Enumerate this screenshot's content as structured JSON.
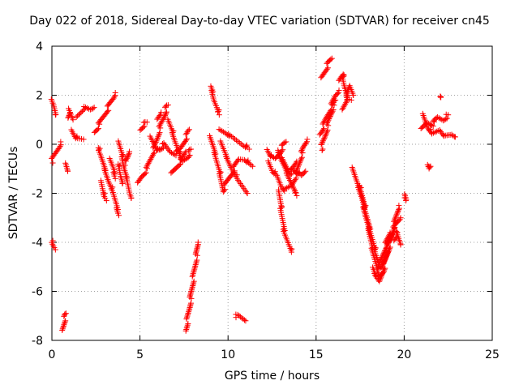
{
  "chart_data": {
    "type": "scatter",
    "title": "Day 022 of 2018, Sidereal Day-to-day VTEC variation (SDTVAR) for receiver cn45",
    "xlabel": "GPS time / hours",
    "ylabel": "SDTVAR / TECUs",
    "xlim": [
      0,
      25
    ],
    "ylim": [
      -8,
      4
    ],
    "xticks": [
      0,
      5,
      10,
      15,
      20,
      25
    ],
    "yticks": [
      -8,
      -6,
      -4,
      -2,
      0,
      2,
      4
    ],
    "grid": true,
    "marker": "+",
    "color": "#ff0000",
    "series": [
      {
        "name": "SDTVAR",
        "tracks": [
          [
            [
              0.0,
              1.8
            ],
            [
              0.1,
              1.6
            ],
            [
              0.2,
              1.2
            ]
          ],
          [
            [
              0.0,
              -0.7
            ],
            [
              0.2,
              -0.4
            ],
            [
              0.4,
              -0.1
            ],
            [
              0.5,
              0.1
            ]
          ],
          [
            [
              0.0,
              -4.0
            ],
            [
              0.2,
              -4.3
            ]
          ],
          [
            [
              0.6,
              -7.6
            ],
            [
              0.7,
              -7.2
            ],
            [
              0.8,
              -6.9
            ]
          ],
          [
            [
              0.8,
              -0.8
            ],
            [
              0.9,
              -1.1
            ]
          ],
          [
            [
              0.9,
              1.1
            ],
            [
              1.0,
              1.4
            ],
            [
              1.2,
              1.0
            ]
          ],
          [
            [
              1.1,
              0.6
            ],
            [
              1.3,
              0.3
            ],
            [
              1.5,
              0.2
            ],
            [
              1.8,
              0.2
            ]
          ],
          [
            [
              1.4,
              1.1
            ],
            [
              1.8,
              1.5
            ],
            [
              2.2,
              1.4
            ],
            [
              2.4,
              1.5
            ]
          ],
          [
            [
              2.4,
              0.5
            ],
            [
              2.6,
              0.7
            ],
            [
              2.9,
              1.1
            ],
            [
              3.2,
              1.5
            ],
            [
              3.5,
              1.9
            ],
            [
              3.6,
              2.1
            ]
          ],
          [
            [
              2.6,
              -0.1
            ],
            [
              2.8,
              -0.5
            ],
            [
              3.0,
              -1.0
            ],
            [
              3.2,
              -1.5
            ],
            [
              3.5,
              -2.0
            ],
            [
              3.7,
              -2.6
            ],
            [
              3.8,
              -2.9
            ]
          ],
          [
            [
              2.8,
              -1.5
            ],
            [
              2.9,
              -2.0
            ],
            [
              3.1,
              -2.3
            ]
          ],
          [
            [
              3.3,
              -0.6
            ],
            [
              3.5,
              -1.0
            ],
            [
              3.6,
              -1.4
            ]
          ],
          [
            [
              3.8,
              0.1
            ],
            [
              4.0,
              -0.5
            ],
            [
              4.1,
              -1.0
            ],
            [
              4.3,
              -1.5
            ],
            [
              4.4,
              -2.0
            ],
            [
              4.5,
              -2.2
            ]
          ],
          [
            [
              3.8,
              -0.8
            ],
            [
              3.9,
              -1.3
            ],
            [
              4.0,
              -1.6
            ]
          ],
          [
            [
              4.1,
              -0.8
            ],
            [
              4.3,
              -0.6
            ],
            [
              4.4,
              -0.3
            ]
          ],
          [
            [
              5.0,
              0.6
            ],
            [
              5.2,
              0.8
            ],
            [
              5.4,
              0.9
            ]
          ],
          [
            [
              4.9,
              -1.6
            ],
            [
              5.1,
              -1.3
            ],
            [
              5.4,
              -1.0
            ],
            [
              5.6,
              -0.6
            ],
            [
              5.9,
              0.0
            ],
            [
              6.1,
              0.6
            ],
            [
              6.4,
              1.2
            ],
            [
              6.5,
              1.5
            ],
            [
              6.6,
              1.6
            ]
          ],
          [
            [
              5.6,
              0.3
            ],
            [
              5.8,
              0.0
            ],
            [
              6.0,
              -0.3
            ],
            [
              6.2,
              -0.2
            ]
          ],
          [
            [
              6.0,
              1.0
            ],
            [
              6.2,
              1.3
            ]
          ],
          [
            [
              6.1,
              -0.2
            ],
            [
              6.4,
              0.0
            ],
            [
              6.7,
              -0.3
            ],
            [
              7.0,
              -0.4
            ],
            [
              7.3,
              -0.2
            ],
            [
              7.5,
              0.1
            ],
            [
              7.7,
              0.4
            ],
            [
              7.8,
              0.6
            ]
          ],
          [
            [
              6.6,
              1.0
            ],
            [
              6.8,
              0.6
            ],
            [
              7.0,
              0.1
            ],
            [
              7.2,
              -0.3
            ],
            [
              7.4,
              -0.7
            ],
            [
              7.7,
              -0.5
            ],
            [
              7.9,
              -0.2
            ]
          ],
          [
            [
              6.8,
              -1.2
            ],
            [
              7.1,
              -0.9
            ],
            [
              7.4,
              -0.6
            ],
            [
              7.6,
              -0.3
            ]
          ],
          [
            [
              7.6,
              -7.6
            ],
            [
              7.8,
              -6.7
            ],
            [
              8.0,
              -5.6
            ],
            [
              8.2,
              -4.6
            ],
            [
              8.3,
              -4.0
            ]
          ],
          [
            [
              9.0,
              2.4
            ],
            [
              9.1,
              2.2
            ],
            [
              9.2,
              1.8
            ],
            [
              9.4,
              1.4
            ],
            [
              9.5,
              1.2
            ]
          ],
          [
            [
              9.0,
              0.3
            ],
            [
              9.2,
              -0.2
            ],
            [
              9.4,
              -0.8
            ],
            [
              9.6,
              -1.4
            ],
            [
              9.7,
              -1.9
            ],
            [
              9.9,
              -1.6
            ],
            [
              10.2,
              -1.2
            ],
            [
              10.6,
              -0.6
            ],
            [
              10.9,
              -0.6
            ],
            [
              11.2,
              -0.8
            ],
            [
              11.4,
              -0.9
            ]
          ],
          [
            [
              9.5,
              0.6
            ],
            [
              9.8,
              0.5
            ],
            [
              10.0,
              0.4
            ],
            [
              10.4,
              0.2
            ],
            [
              10.8,
              0.0
            ],
            [
              11.0,
              -0.1
            ],
            [
              11.2,
              -0.2
            ]
          ],
          [
            [
              9.6,
              0.1
            ],
            [
              9.9,
              -0.5
            ],
            [
              10.2,
              -1.0
            ],
            [
              10.6,
              -1.5
            ],
            [
              11.0,
              -1.9
            ],
            [
              11.1,
              -2.0
            ]
          ],
          [
            [
              10.4,
              -7.0
            ],
            [
              10.6,
              -7.0
            ],
            [
              10.8,
              -7.1
            ],
            [
              11.0,
              -7.2
            ]
          ],
          [
            [
              12.2,
              -0.2
            ],
            [
              12.4,
              -0.5
            ],
            [
              12.7,
              -0.6
            ],
            [
              12.9,
              -0.4
            ],
            [
              13.1,
              -0.1
            ],
            [
              13.3,
              0.1
            ]
          ],
          [
            [
              12.3,
              -0.7
            ],
            [
              12.5,
              -1.1
            ],
            [
              12.8,
              -1.3
            ],
            [
              13.0,
              -1.7
            ],
            [
              13.2,
              -1.9
            ],
            [
              13.6,
              -1.7
            ],
            [
              13.9,
              -1.2
            ],
            [
              14.1,
              -0.6
            ],
            [
              14.3,
              -0.1
            ],
            [
              14.5,
              0.2
            ]
          ],
          [
            [
              12.8,
              -0.2
            ],
            [
              13.0,
              -0.6
            ],
            [
              13.2,
              -0.9
            ],
            [
              13.4,
              -1.3
            ],
            [
              13.6,
              -1.6
            ],
            [
              13.8,
              -1.9
            ],
            [
              13.9,
              -2.1
            ]
          ],
          [
            [
              12.9,
              -1.9
            ],
            [
              13.0,
              -2.6
            ],
            [
              13.1,
              -3.1
            ],
            [
              13.2,
              -3.6
            ],
            [
              13.4,
              -4.0
            ],
            [
              13.6,
              -4.4
            ]
          ],
          [
            [
              13.1,
              -0.6
            ],
            [
              13.3,
              -0.9
            ],
            [
              13.5,
              -1.2
            ],
            [
              13.7,
              -1.0
            ],
            [
              13.9,
              -0.7
            ]
          ],
          [
            [
              13.6,
              -1.0
            ],
            [
              14.0,
              -1.2
            ],
            [
              14.2,
              -1.3
            ],
            [
              14.4,
              -1.1
            ]
          ],
          [
            [
              15.2,
              0.4
            ],
            [
              15.4,
              0.7
            ],
            [
              15.6,
              1.1
            ],
            [
              15.9,
              1.6
            ],
            [
              16.1,
              2.0
            ],
            [
              16.3,
              2.2
            ]
          ],
          [
            [
              15.3,
              -0.2
            ],
            [
              15.5,
              0.3
            ],
            [
              15.7,
              0.9
            ],
            [
              15.9,
              1.4
            ],
            [
              16.1,
              1.8
            ]
          ],
          [
            [
              15.3,
              2.7
            ],
            [
              15.5,
              3.0
            ],
            [
              15.7,
              3.3
            ],
            [
              15.9,
              3.5
            ]
          ],
          [
            [
              16.3,
              2.6
            ],
            [
              16.5,
              2.9
            ],
            [
              16.6,
              2.4
            ],
            [
              16.7,
              2.1
            ],
            [
              16.8,
              1.8
            ],
            [
              17.0,
              1.8
            ]
          ],
          [
            [
              16.5,
              1.4
            ],
            [
              16.7,
              1.8
            ],
            [
              16.9,
              2.4
            ],
            [
              17.1,
              2.0
            ]
          ],
          [
            [
              17.1,
              -1.0
            ],
            [
              17.3,
              -1.5
            ],
            [
              17.6,
              -2.2
            ],
            [
              17.8,
              -2.9
            ],
            [
              18.0,
              -3.5
            ],
            [
              18.2,
              -4.3
            ],
            [
              18.4,
              -4.9
            ],
            [
              18.6,
              -5.4
            ],
            [
              18.8,
              -5.2
            ],
            [
              19.0,
              -4.6
            ],
            [
              19.2,
              -4.0
            ],
            [
              19.4,
              -3.4
            ],
            [
              19.6,
              -2.8
            ],
            [
              19.7,
              -2.5
            ]
          ],
          [
            [
              17.5,
              -1.7
            ],
            [
              17.8,
              -2.7
            ],
            [
              18.1,
              -3.6
            ],
            [
              18.4,
              -4.5
            ],
            [
              18.6,
              -5.0
            ],
            [
              18.8,
              -4.5
            ],
            [
              19.0,
              -4.0
            ],
            [
              19.2,
              -3.6
            ]
          ],
          [
            [
              18.2,
              -5.0
            ],
            [
              18.4,
              -5.4
            ],
            [
              18.6,
              -5.6
            ],
            [
              18.8,
              -5.0
            ],
            [
              19.0,
              -4.4
            ],
            [
              19.3,
              -3.6
            ],
            [
              19.6,
              -3.2
            ],
            [
              19.8,
              -3.0
            ]
          ],
          [
            [
              19.4,
              -3.9
            ],
            [
              19.6,
              -3.6
            ],
            [
              19.8,
              -4.1
            ]
          ],
          [
            [
              20.0,
              -2.0
            ],
            [
              20.1,
              -2.3
            ]
          ],
          [
            [
              21.0,
              0.6
            ],
            [
              21.3,
              0.9
            ],
            [
              21.6,
              0.8
            ],
            [
              21.9,
              1.1
            ],
            [
              22.2,
              1.0
            ],
            [
              22.5,
              1.2
            ]
          ],
          [
            [
              21.1,
              1.2
            ],
            [
              21.3,
              0.7
            ],
            [
              21.6,
              0.4
            ],
            [
              22.0,
              0.6
            ],
            [
              22.3,
              0.3
            ],
            [
              22.7,
              0.4
            ],
            [
              22.9,
              0.3
            ]
          ],
          [
            [
              21.3,
              -0.8
            ],
            [
              21.4,
              -1.0
            ],
            [
              21.5,
              -0.9
            ]
          ],
          [
            [
              22.1,
              1.9
            ]
          ]
        ]
      }
    ]
  }
}
